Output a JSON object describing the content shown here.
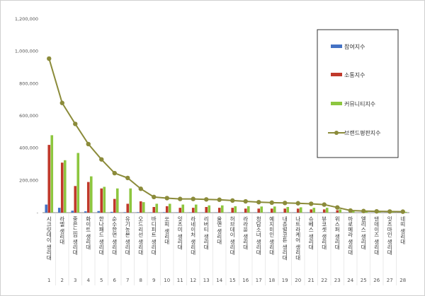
{
  "chart_data": {
    "type": "bar",
    "categories": [
      "시크릿데이 생리대",
      "라엘 생리대",
      "좋은느낌 생리대",
      "화이트 생리대",
      "한나패드 생리대",
      "순수한면 생리대",
      "유기농본 생리대",
      "오드리선 생리대",
      "바디피트 생리대",
      "쏘피 생리대",
      "잇츠미 생리대",
      "라네이처 생리대",
      "리버티 생리대",
      "울앤 생리대",
      "허브데이 생리대",
      "라라윤 생리대",
      "청담소녀 생리대",
      "예지미인 생리대",
      "내츄럴코튼 생리대",
      "나트라케어 생리대",
      "슈베스 생리대",
      "뷰코셋 생리대",
      "위스퍼 생리대",
      "마로메라 생리대",
      "엘리스 생리대",
      "댄데이즈 생리대",
      "잇츠마인 생리대",
      "네띠 생리대"
    ],
    "index_labels": [
      "1",
      "2",
      "3",
      "4",
      "5",
      "6",
      "7",
      "8",
      "9",
      "10",
      "11",
      "12",
      "13",
      "14",
      "15",
      "16",
      "17",
      "18",
      "19",
      "20",
      "21",
      "22",
      "23",
      "24",
      "25",
      "26",
      "27",
      "28"
    ],
    "series": [
      {
        "name": "참여지수",
        "kind": "bar",
        "color": "#4472c4",
        "values": [
          50000,
          30000,
          12000,
          8000,
          10000,
          5000,
          3000,
          3000,
          2000,
          3000,
          2000,
          2000,
          1500,
          1500,
          1500,
          1500,
          1500,
          1500,
          1500,
          1500,
          1500,
          1500,
          1000,
          1000,
          800,
          500,
          500,
          500
        ]
      },
      {
        "name": "소통지수",
        "kind": "bar",
        "color": "#c0392b",
        "values": [
          420000,
          310000,
          165000,
          190000,
          150000,
          85000,
          55000,
          70000,
          35000,
          40000,
          30000,
          30000,
          35000,
          30000,
          30000,
          25000,
          25000,
          25000,
          25000,
          25000,
          20000,
          20000,
          15000,
          10000,
          8000,
          5000,
          5000,
          3000
        ]
      },
      {
        "name": "커뮤니티지수",
        "kind": "bar",
        "color": "#8dc63f",
        "values": [
          480000,
          325000,
          370000,
          225000,
          160000,
          150000,
          150000,
          65000,
          55000,
          55000,
          50000,
          50000,
          45000,
          45000,
          40000,
          40000,
          38000,
          38000,
          35000,
          33000,
          30000,
          30000,
          20000,
          10000,
          8000,
          5000,
          5000,
          5000
        ]
      },
      {
        "name": "브랜드평판지수",
        "kind": "line",
        "color": "#8b8b3a",
        "values": [
          955000,
          680000,
          550000,
          425000,
          330000,
          245000,
          215000,
          148000,
          97000,
          90000,
          85000,
          85000,
          82000,
          80000,
          75000,
          70000,
          65000,
          62000,
          60000,
          58000,
          55000,
          50000,
          32000,
          13000,
          10000,
          8000,
          7000,
          6000
        ]
      }
    ],
    "y_ticks": [
      "-",
      "200,000",
      "400,000",
      "600,000",
      "800,000",
      "1,000,000",
      "1,200,000"
    ],
    "ylim": [
      0,
      1200000
    ],
    "grid": false,
    "legend_position": "top-right"
  }
}
